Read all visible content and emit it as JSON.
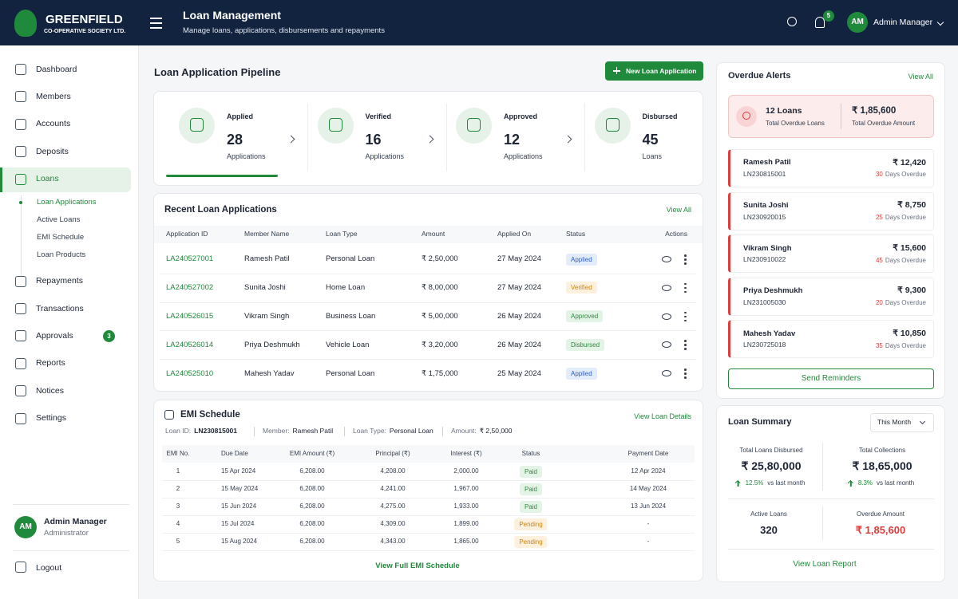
{
  "header": {
    "brand": "GREENFIELD",
    "brand_sub": "CO-OPERATIVE SOCIETY LTD.",
    "title": "Loan Management",
    "subtitle": "Manage loans, applications, disbursements and repayments",
    "notifications": 5,
    "user_initials": "AM",
    "user_name": "Admin Manager"
  },
  "sidebar": {
    "items": [
      {
        "label": "Dashboard"
      },
      {
        "label": "Members"
      },
      {
        "label": "Accounts"
      },
      {
        "label": "Deposits"
      },
      {
        "label": "Loans",
        "active": true,
        "children": [
          {
            "label": "Loan Applications",
            "active": true
          },
          {
            "label": "Active Loans"
          },
          {
            "label": "EMI Schedule"
          },
          {
            "label": "Loan Products"
          }
        ]
      },
      {
        "label": "Repayments"
      },
      {
        "label": "Transactions"
      },
      {
        "label": "Approvals",
        "badge": 3
      },
      {
        "label": "Reports"
      },
      {
        "label": "Notices"
      },
      {
        "label": "Settings"
      }
    ],
    "profile": {
      "initials": "AM",
      "name": "Admin Manager",
      "role": "Administrator"
    },
    "logout": "Logout"
  },
  "pipeline": {
    "title": "Loan Application Pipeline",
    "button": "New Loan Application",
    "stages": [
      {
        "label": "Applied",
        "count": 28,
        "unit": "Applications"
      },
      {
        "label": "Verified",
        "count": 16,
        "unit": "Applications"
      },
      {
        "label": "Approved",
        "count": 12,
        "unit": "Applications"
      },
      {
        "label": "Disbursed",
        "count": 45,
        "unit": "Loans"
      }
    ]
  },
  "recent": {
    "title": "Recent Loan Applications",
    "view_all": "View All",
    "columns": [
      "Application ID",
      "Member Name",
      "Loan Type",
      "Amount",
      "Applied On",
      "Status",
      "Actions"
    ],
    "rows": [
      {
        "id": "LA240527001",
        "member": "Ramesh Patil",
        "type": "Personal Loan",
        "amount": "₹ 2,50,000",
        "date": "27 May 2024",
        "status": {
          "label": "Applied",
          "color": "#2c5fc4",
          "bg": "#e3ecfb"
        }
      },
      {
        "id": "LA240527002",
        "member": "Sunita Joshi",
        "type": "Home Loan",
        "amount": "₹ 8,00,000",
        "date": "27 May 2024",
        "status": {
          "label": "Verified",
          "color": "#c98512",
          "bg": "#fdf0dc"
        }
      },
      {
        "id": "LA240526015",
        "member": "Vikram Singh",
        "type": "Business Loan",
        "amount": "₹ 5,00,000",
        "date": "26 May 2024",
        "status": {
          "label": "Approved",
          "color": "#2e8b3e",
          "bg": "#e3f4e6"
        }
      },
      {
        "id": "LA240526014",
        "member": "Priya Deshmukh",
        "type": "Vehicle Loan",
        "amount": "₹ 3,20,000",
        "date": "26 May 2024",
        "status": {
          "label": "Disbursed",
          "color": "#2e8b3e",
          "bg": "#e3f4e6"
        }
      },
      {
        "id": "LA240525010",
        "member": "Mahesh Yadav",
        "type": "Personal Loan",
        "amount": "₹ 1,75,000",
        "date": "25 May 2024",
        "status": {
          "label": "Applied",
          "color": "#2c5fc4",
          "bg": "#e3ecfb"
        }
      }
    ]
  },
  "emi": {
    "title": "EMI Schedule",
    "link": "View Loan Details",
    "meta": [
      {
        "label": "Loan ID:",
        "value": "LN230815001"
      },
      {
        "label": "Member:",
        "value": "Ramesh Patil"
      },
      {
        "label": "Loan Type:",
        "value": "Personal Loan"
      },
      {
        "label": "Amount:",
        "value": "₹ 2,50,000"
      }
    ],
    "columns": [
      "EMI No.",
      "Due Date",
      "EMI Amount (₹)",
      "Principal (₹)",
      "Interest (₹)",
      "Status",
      "Payment Date"
    ],
    "rows": [
      {
        "no": 1,
        "due": "15 Apr 2024",
        "emi": "6,208.00",
        "principal": "4,208.00",
        "interest": "2,000.00",
        "status": {
          "label": "Paid",
          "color": "#2e8b3e",
          "bg": "#e3f4e6"
        },
        "paid_on": "12 Apr 2024"
      },
      {
        "no": 2,
        "due": "15 May 2024",
        "emi": "6,208.00",
        "principal": "4,241.00",
        "interest": "1,967.00",
        "status": {
          "label": "Paid",
          "color": "#2e8b3e",
          "bg": "#e3f4e6"
        },
        "paid_on": "14 May 2024"
      },
      {
        "no": 3,
        "due": "15 Jun 2024",
        "emi": "6,208.00",
        "principal": "4,275.00",
        "interest": "1,933.00",
        "status": {
          "label": "Paid",
          "color": "#2e8b3e",
          "bg": "#e3f4e6"
        },
        "paid_on": "13 Jun 2024"
      },
      {
        "no": 4,
        "due": "15 Jul 2024",
        "emi": "6,208.00",
        "principal": "4,309.00",
        "interest": "1,899.00",
        "status": {
          "label": "Pending",
          "color": "#c98512",
          "bg": "#fdf0dc"
        },
        "paid_on": "-"
      },
      {
        "no": 5,
        "due": "15 Aug 2024",
        "emi": "6,208.00",
        "principal": "4,343.00",
        "interest": "1,865.00",
        "status": {
          "label": "Pending",
          "color": "#c98512",
          "bg": "#fdf0dc"
        },
        "paid_on": "-"
      }
    ],
    "footer": "View Full EMI Schedule"
  },
  "overdue": {
    "title": "Overdue Alerts",
    "view_all": "View All",
    "count": "12 Loans",
    "count_label": "Total Overdue Loans",
    "amount": "₹ 1,85,600",
    "amount_label": "Total Overdue Amount",
    "items": [
      {
        "name": "Ramesh Patil",
        "id": "LN230815001",
        "amount": "₹ 12,420",
        "days": 30,
        "days_label": "Days Overdue"
      },
      {
        "name": "Sunita Joshi",
        "id": "LN230920015",
        "amount": "₹ 8,750",
        "days": 25,
        "days_label": "Days Overdue"
      },
      {
        "name": "Vikram Singh",
        "id": "LN230910022",
        "amount": "₹ 15,600",
        "days": 45,
        "days_label": "Days Overdue"
      },
      {
        "name": "Priya Deshmukh",
        "id": "LN231005030",
        "amount": "₹ 9,300",
        "days": 20,
        "days_label": "Days Overdue"
      },
      {
        "name": "Mahesh Yadav",
        "id": "LN230725018",
        "amount": "₹ 10,850",
        "days": 35,
        "days_label": "Days Overdue"
      }
    ],
    "button": "Send Reminders"
  },
  "summary": {
    "title": "Loan Summary",
    "period": "This Month",
    "stats": [
      {
        "label": "Total Loans Disbursed",
        "value": "₹ 25,80,000",
        "change": "12.5%",
        "change_label": "vs last month"
      },
      {
        "label": "Total Collections",
        "value": "₹ 18,65,000",
        "change": "8.3%",
        "change_label": "vs last month"
      }
    ],
    "active_label": "Active Loans",
    "active_value": 320,
    "overdue_label": "Overdue Amount",
    "overdue_value": "₹ 1,85,600",
    "link": "View Loan Report"
  }
}
